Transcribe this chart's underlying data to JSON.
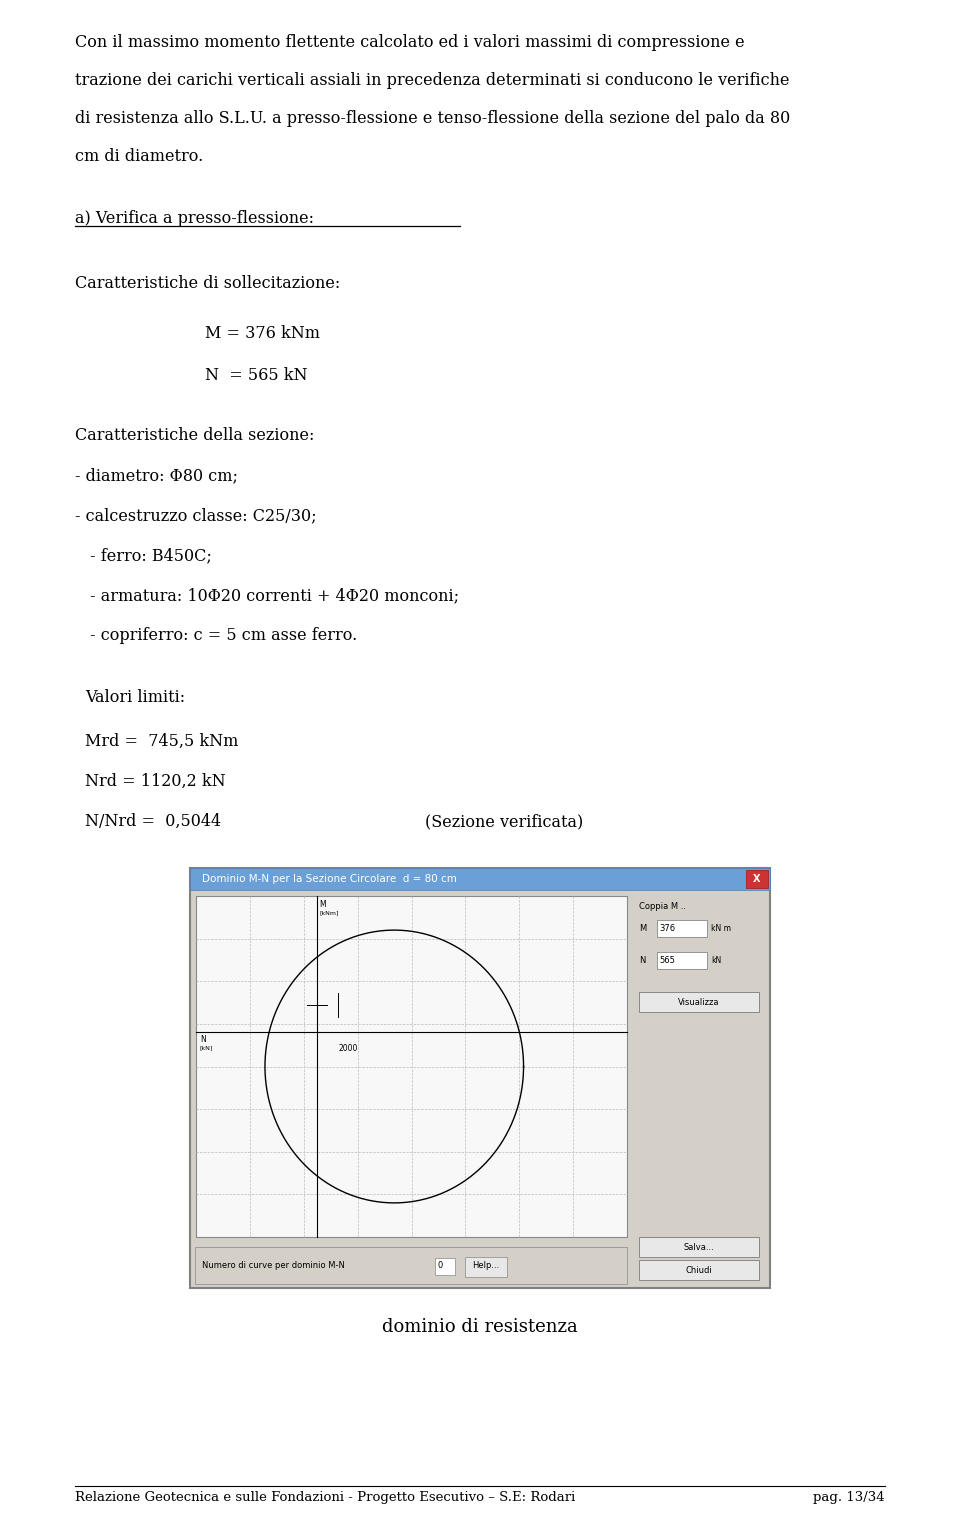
{
  "bg_color": "#ffffff",
  "text_color": "#000000",
  "font_family": "DejaVu Serif",
  "page_width": 9.6,
  "page_height": 15.29,
  "line1": "Con il massimo momento flettente calcolato ed i valori massimi di compressione e",
  "line2": "trazione dei carichi verticali assiali in precedenza determinati si conducono le verifiche",
  "line3": "di resistenza allo S.L.U. a presso-flessione e tenso-flessione della sezione del palo da 80",
  "line4": "cm di diametro.",
  "section_a_title": "a) Verifica a presso-flessione:",
  "carac_sollic": "Caratteristiche di sollecitazione:",
  "M_line": "M = 376 kNm",
  "N_line": "N  = 565 kN",
  "carac_sez": "Caratteristiche della sezione:",
  "bullet1": "- diametro: Φ80 cm;",
  "bullet2": "- calcestruzzo classe: C25/30;",
  "bullet3": " - ferro: B450C;",
  "bullet4": " - armatura: 10Φ20 correnti + 4Φ20 monconi;",
  "bullet5": " - copriferro: c = 5 cm asse ferro.",
  "valori_title": "Valori limiti:",
  "mrd_line": "Mrd =  745,5 kNm",
  "nrd_line": "Nrd = 1120,2 kN",
  "nnrd_line": "N/Nrd =  0,5044",
  "sez_verif": "(Sezione verificata)",
  "caption": "dominio di resistenza",
  "footer_left": "Relazione Geotecnica e sulle Fondazioni - Progetto Esecutivo – S.E: Rodari",
  "footer_right": "pag. 13/34",
  "dialog_title": "Dominio M-N per la Sezione Circolare  d = 80 cm",
  "dialog_label_coppia": "Coppia M ..",
  "dialog_M_label": "M",
  "dialog_M_val": "376",
  "dialog_M_unit": "kN m",
  "dialog_N_label": "N",
  "dialog_N_val": "565",
  "dialog_N_unit": "kN",
  "dialog_btn1": "Visualizza",
  "dialog_btn2": "Salva...",
  "dialog_btn3": "Help...",
  "dialog_btn4": "Chiudi",
  "dialog_numcurve": "Numero di curve per dominio M-N",
  "dialog_numcurve_val": "0",
  "body_fontsize": 11.5,
  "small_fontsize": 9.0
}
